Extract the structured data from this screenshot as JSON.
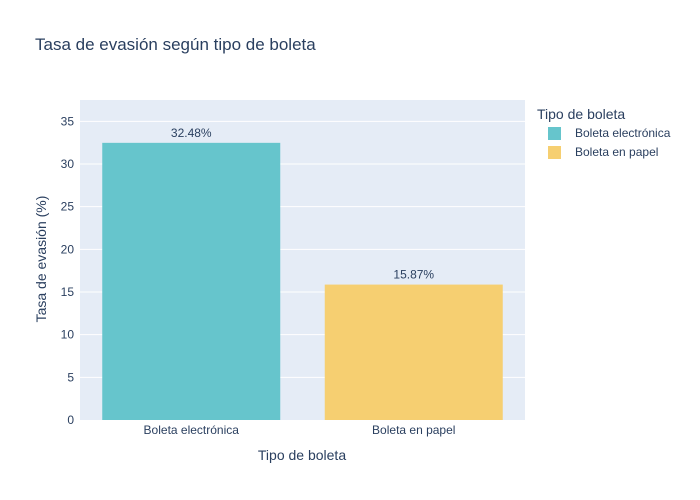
{
  "chart_data": {
    "type": "bar",
    "title": "Tasa de evasión según tipo de boleta",
    "xlabel": "Tipo de boleta",
    "ylabel": "Tasa de evasión (%)",
    "ylim": [
      0,
      37.5
    ],
    "yticks": [
      0,
      5,
      10,
      15,
      20,
      25,
      30,
      35
    ],
    "grid": true,
    "categories": [
      "Boleta electrónica",
      "Boleta en papel"
    ],
    "values": [
      32.48,
      15.87
    ],
    "data_labels": [
      "32.48%",
      "15.87%"
    ],
    "colors": [
      "#66c5cc",
      "#f6cf71"
    ],
    "legend": {
      "title": "Tipo de boleta",
      "placement": "top-right",
      "entries": [
        "Boleta electrónica",
        "Boleta en papel"
      ]
    },
    "plot_background": "#e5ecf6"
  }
}
